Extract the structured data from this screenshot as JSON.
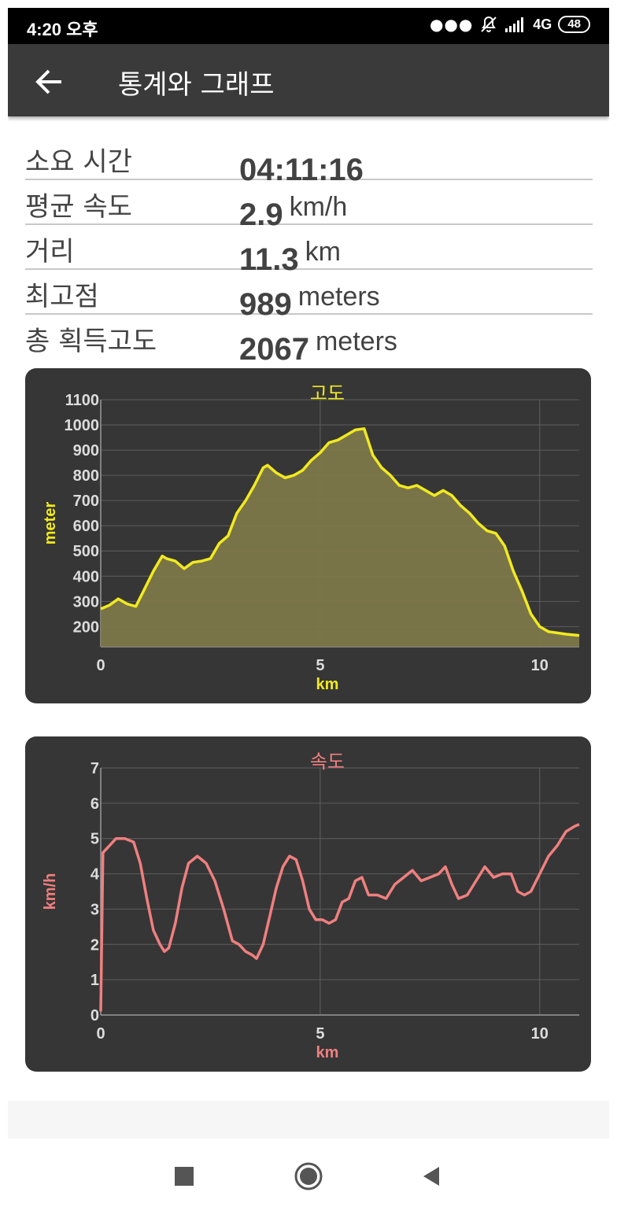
{
  "status": {
    "time": "4:20 오후",
    "network": "4G",
    "battery": "48"
  },
  "appbar": {
    "title": "통계와 그래프"
  },
  "stats": [
    {
      "label": "소요 시간",
      "value": "04:11:16",
      "unit": ""
    },
    {
      "label": "평균 속도",
      "value": "2.9",
      "unit": "km/h"
    },
    {
      "label": "거리",
      "value": "11.3",
      "unit": "km"
    },
    {
      "label": "최고점",
      "value": "989",
      "unit": "meters"
    },
    {
      "label": "총 획득고도",
      "value": "2067",
      "unit": "meters"
    }
  ],
  "chart_data": [
    {
      "type": "area",
      "title": "고도",
      "xlabel": "km",
      "ylabel": "meter",
      "xlim": [
        0,
        10.9
      ],
      "ylim": [
        120,
        1100
      ],
      "yticks": [
        200,
        300,
        400,
        500,
        600,
        700,
        800,
        900,
        1000,
        1100
      ],
      "xticks": [
        0,
        5,
        10
      ],
      "grid": true,
      "color": "#f2ea1e",
      "fill": "#7d784a",
      "x": [
        0,
        0.2,
        0.4,
        0.6,
        0.8,
        1.0,
        1.2,
        1.4,
        1.5,
        1.7,
        1.9,
        2.1,
        2.3,
        2.5,
        2.7,
        2.9,
        3.1,
        3.3,
        3.5,
        3.7,
        3.8,
        4.0,
        4.2,
        4.4,
        4.6,
        4.8,
        5.0,
        5.2,
        5.4,
        5.6,
        5.8,
        6.0,
        6.2,
        6.4,
        6.6,
        6.8,
        7.0,
        7.2,
        7.4,
        7.6,
        7.8,
        8.0,
        8.2,
        8.4,
        8.6,
        8.8,
        9.0,
        9.2,
        9.4,
        9.6,
        9.8,
        10.0,
        10.2,
        10.4,
        10.6,
        10.9
      ],
      "y": [
        270,
        285,
        310,
        290,
        280,
        350,
        420,
        480,
        470,
        460,
        430,
        455,
        460,
        470,
        530,
        560,
        650,
        700,
        760,
        830,
        840,
        810,
        790,
        800,
        820,
        860,
        890,
        930,
        940,
        960,
        980,
        985,
        880,
        830,
        800,
        760,
        750,
        760,
        740,
        720,
        740,
        720,
        680,
        650,
        610,
        580,
        570,
        520,
        420,
        340,
        250,
        200,
        180,
        175,
        170,
        165
      ]
    },
    {
      "type": "line",
      "title": "속도",
      "xlabel": "km",
      "ylabel": "km/h",
      "xlim": [
        0,
        10.9
      ],
      "ylim": [
        0,
        7
      ],
      "yticks": [
        0,
        1,
        2,
        3,
        4,
        5,
        6,
        7
      ],
      "xticks": [
        0,
        5,
        10
      ],
      "grid": true,
      "color": "#f07f7f",
      "x": [
        0,
        0.05,
        0.2,
        0.35,
        0.55,
        0.75,
        0.9,
        1.05,
        1.2,
        1.35,
        1.45,
        1.55,
        1.7,
        1.85,
        2.0,
        2.2,
        2.4,
        2.6,
        2.8,
        3.0,
        3.15,
        3.3,
        3.45,
        3.55,
        3.7,
        3.85,
        4.0,
        4.15,
        4.3,
        4.45,
        4.6,
        4.75,
        4.9,
        5.05,
        5.2,
        5.35,
        5.5,
        5.65,
        5.8,
        5.95,
        6.1,
        6.3,
        6.5,
        6.7,
        6.9,
        7.1,
        7.3,
        7.5,
        7.7,
        7.85,
        8.0,
        8.15,
        8.35,
        8.55,
        8.75,
        8.95,
        9.15,
        9.35,
        9.5,
        9.65,
        9.8,
        10.0,
        10.2,
        10.4,
        10.6,
        10.8,
        10.9
      ],
      "y": [
        0.1,
        4.6,
        4.8,
        5.0,
        5.0,
        4.9,
        4.3,
        3.3,
        2.4,
        2.0,
        1.8,
        1.9,
        2.6,
        3.6,
        4.3,
        4.5,
        4.3,
        3.8,
        3.0,
        2.1,
        2.0,
        1.8,
        1.7,
        1.6,
        2.0,
        2.8,
        3.6,
        4.2,
        4.5,
        4.4,
        3.8,
        3.0,
        2.7,
        2.7,
        2.6,
        2.7,
        3.2,
        3.3,
        3.8,
        3.9,
        3.4,
        3.4,
        3.3,
        3.7,
        3.9,
        4.1,
        3.8,
        3.9,
        4.0,
        4.2,
        3.7,
        3.3,
        3.4,
        3.8,
        4.2,
        3.9,
        4.0,
        4.0,
        3.5,
        3.4,
        3.5,
        4.0,
        4.5,
        4.8,
        5.2,
        5.35,
        5.4
      ]
    }
  ]
}
